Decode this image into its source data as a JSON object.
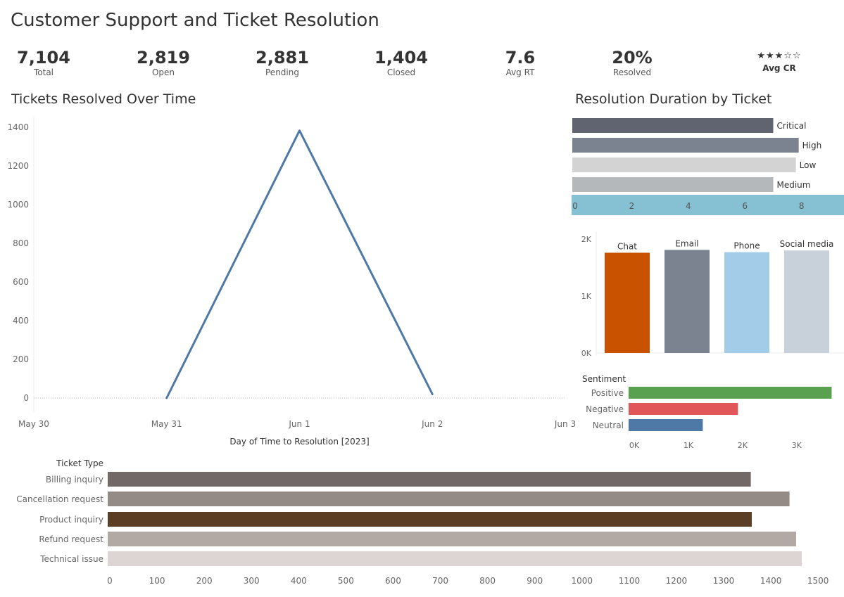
{
  "dashboard": {
    "title": "Customer Support and Ticket Resolution"
  },
  "kpis": [
    {
      "value": "7,104",
      "label": "Total"
    },
    {
      "value": "2,819",
      "label": "Open"
    },
    {
      "value": "2,881",
      "label": "Pending"
    },
    {
      "value": "1,404",
      "label": "Closed"
    },
    {
      "value": "7.6",
      "label": "Avg RT"
    },
    {
      "value": "20%",
      "label": "Resolved"
    }
  ],
  "rating_kpi": {
    "stars_filled": 3,
    "stars_total": 5,
    "label": "Avg CR"
  },
  "chart_data": [
    {
      "id": "resolved_over_time",
      "type": "line",
      "title": "Tickets Resolved Over Time",
      "xlabel": "Day of Time to Resolution [2023]",
      "ylabel": "",
      "x_ticks": [
        "May 30",
        "May 31",
        "Jun 1",
        "Jun 2",
        "Jun 3"
      ],
      "y_ticks": [
        "1400",
        "1200",
        "1000",
        "800",
        "600",
        "400",
        "200",
        "0"
      ],
      "ylim": [
        0,
        1400
      ],
      "x": [
        "May 31",
        "Jun 1",
        "Jun 2"
      ],
      "values": [
        0,
        1383,
        20
      ],
      "color": "#4e79a7"
    },
    {
      "id": "resolution_by_priority",
      "type": "bar",
      "orientation": "horizontal",
      "title": "Resolution Duration by Ticket",
      "categories": [
        "Critical",
        "High",
        "Low",
        "Medium"
      ],
      "values": [
        7.1,
        8.0,
        7.9,
        7.1
      ],
      "colors": [
        "#5f6470",
        "#7b8390",
        "#d3d3d3",
        "#b5b8ba"
      ],
      "x_ticks": [
        "0",
        "2",
        "4",
        "6",
        "8"
      ],
      "xlim": [
        0,
        9.6
      ],
      "axis_color": "#86c1d3"
    },
    {
      "id": "tickets_by_channel",
      "type": "bar",
      "categories": [
        "Chat",
        "Email",
        "Phone",
        "Social media"
      ],
      "values": [
        1760,
        1810,
        1770,
        1800
      ],
      "colors": [
        "#c85200",
        "#7b8390",
        "#a3cce9",
        "#c8d0d9"
      ],
      "y_ticks": [
        "2K",
        "1K",
        "0K"
      ],
      "ylim": [
        0,
        2000
      ]
    },
    {
      "id": "sentiment",
      "type": "bar",
      "orientation": "horizontal",
      "header": "Sentiment",
      "categories": [
        "Positive",
        "Negative",
        "Neutral"
      ],
      "values": [
        3750,
        2020,
        1370
      ],
      "colors": [
        "#59a14f",
        "#e15759",
        "#4e79a7"
      ],
      "x_ticks": [
        "0K",
        "1K",
        "2K",
        "3K"
      ],
      "xlim": [
        0,
        3900
      ]
    },
    {
      "id": "ticket_type",
      "type": "bar",
      "orientation": "horizontal",
      "header": "Ticket Type",
      "categories": [
        "Billing inquiry",
        "Cancellation request",
        "Product inquiry",
        "Refund request",
        "Technical issue"
      ],
      "values": [
        1362,
        1444,
        1364,
        1458,
        1470
      ],
      "colors": [
        "#726967",
        "#948a86",
        "#5b3e24",
        "#b2a8a4",
        "#ddd5d3"
      ],
      "x_ticks": [
        "0",
        "100",
        "200",
        "300",
        "400",
        "500",
        "600",
        "700",
        "800",
        "900",
        "1000",
        "1100",
        "1200",
        "1300",
        "1400",
        "1500"
      ],
      "xlim": [
        0,
        1540
      ]
    }
  ]
}
